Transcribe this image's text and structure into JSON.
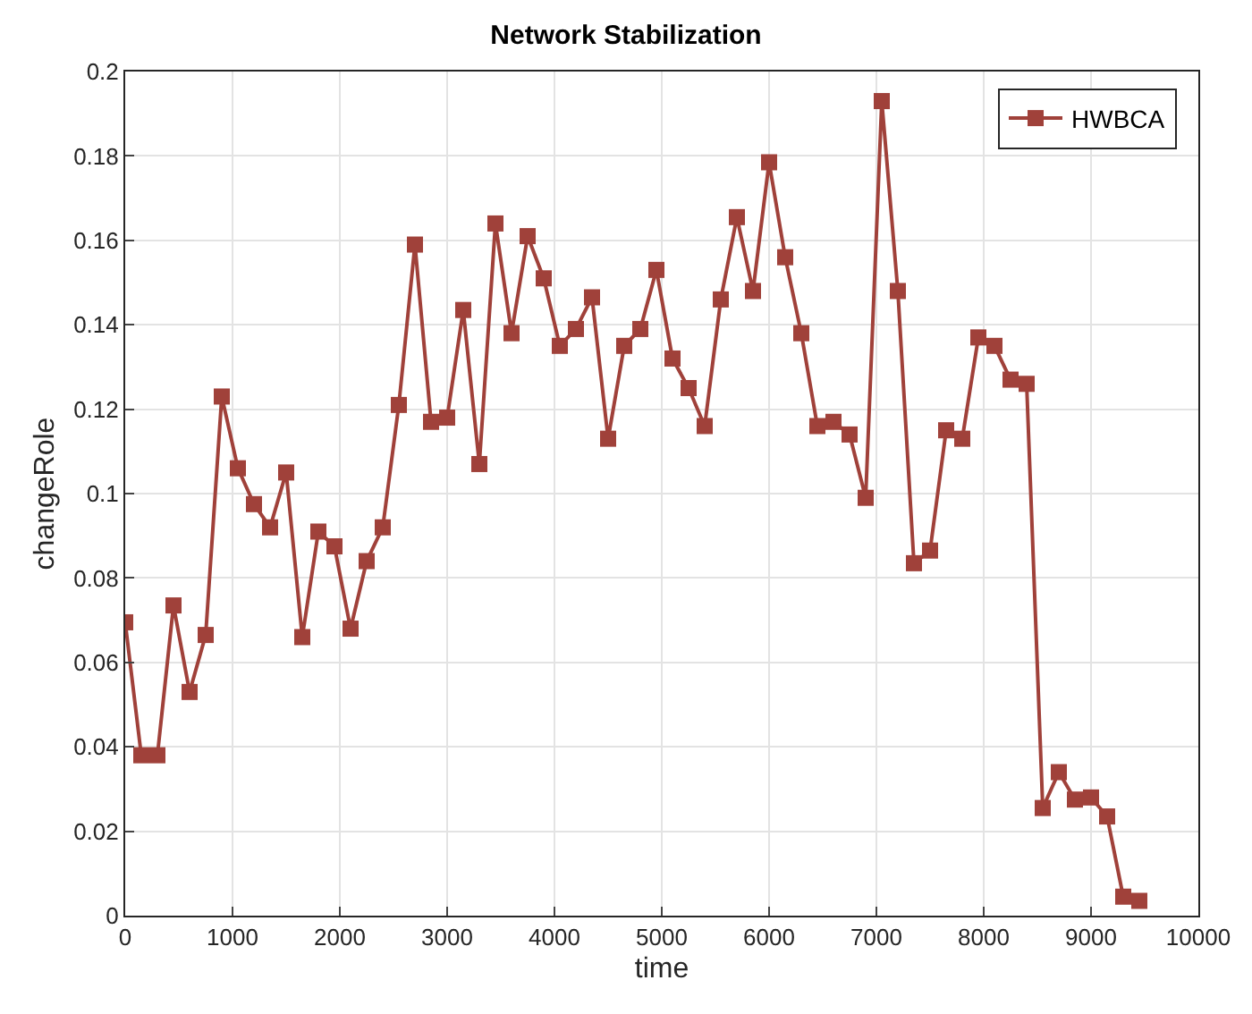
{
  "chart_data": {
    "type": "line",
    "title": "Network Stabilization",
    "xlabel": "time",
    "ylabel": "changeRole",
    "x": [
      0,
      150,
      300,
      450,
      600,
      750,
      900,
      1050,
      1200,
      1350,
      1500,
      1650,
      1800,
      1950,
      2100,
      2250,
      2400,
      2550,
      2700,
      2850,
      3000,
      3150,
      3300,
      3450,
      3600,
      3750,
      3900,
      4050,
      4200,
      4350,
      4500,
      4650,
      4800,
      4950,
      5100,
      5250,
      5400,
      5550,
      5700,
      5850,
      6000,
      6150,
      6300,
      6450,
      6600,
      6750,
      6900,
      7050,
      7200,
      7350,
      7500,
      7650,
      7800,
      7950,
      8100,
      8250,
      8400,
      8550,
      8700,
      8850,
      9000,
      9150,
      9300,
      9450
    ],
    "series": [
      {
        "name": "HWBCA",
        "color": "#a0413a",
        "values": [
          0.0695,
          0.038,
          0.038,
          0.0735,
          0.053,
          0.0665,
          0.123,
          0.106,
          0.0975,
          0.092,
          0.105,
          0.066,
          0.091,
          0.0875,
          0.068,
          0.084,
          0.092,
          0.121,
          0.159,
          0.117,
          0.118,
          0.1435,
          0.107,
          0.164,
          0.138,
          0.161,
          0.151,
          0.135,
          0.139,
          0.1465,
          0.113,
          0.135,
          0.139,
          0.153,
          0.132,
          0.125,
          0.116,
          0.146,
          0.1655,
          0.148,
          0.1785,
          0.156,
          0.138,
          0.116,
          0.117,
          0.114,
          0.099,
          0.193,
          0.148,
          0.0835,
          0.0865,
          0.115,
          0.113,
          0.137,
          0.135,
          0.127,
          0.126,
          0.0255,
          0.034,
          0.0275,
          0.028,
          0.0235,
          0.0045,
          0.0035
        ]
      }
    ],
    "xlim": [
      0,
      10000
    ],
    "xticks": [
      0,
      1000,
      2000,
      3000,
      4000,
      5000,
      6000,
      7000,
      8000,
      9000,
      10000
    ],
    "ylim": [
      0,
      0.2
    ],
    "yticks": [
      0,
      0.02,
      0.04,
      0.06,
      0.08,
      0.1,
      0.12,
      0.14,
      0.16,
      0.18,
      0.2
    ],
    "grid": true,
    "legend": "top right",
    "marker": "square",
    "line_style": "solid"
  }
}
